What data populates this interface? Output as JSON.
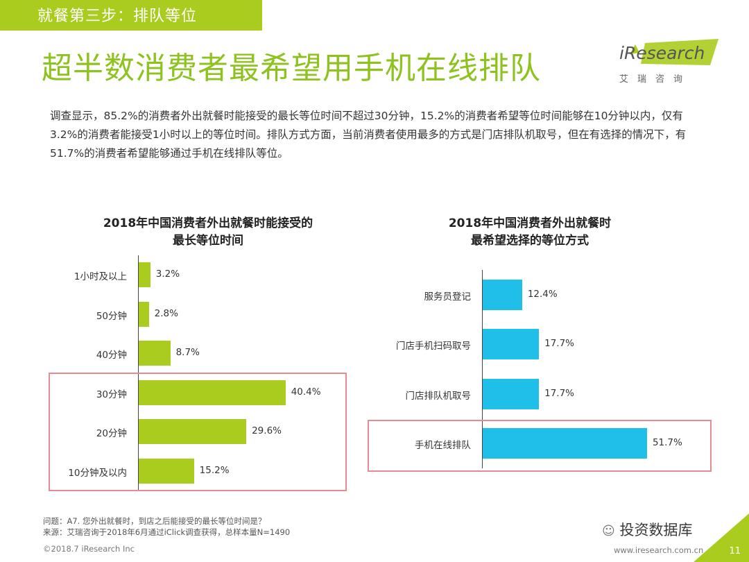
{
  "header": {
    "step_label": "就餐第三步：排队等位",
    "title": "超半数消费者最希望用手机在线排队",
    "logo_text": "iResearch",
    "logo_sub": "艾瑞咨询"
  },
  "intro": "调查显示，85.2%的消费者外出就餐时能接受的最长等位时间不超过30分钟，15.2%的消费者希望等位时间能够在10分钟以内，仅有3.2%的消费者能接受1小时以上的等位时间。排队方式方面，当前消费者使用最多的方式是门店排队机取号，但在有选择的情况下，有51.7%的消费者希望能够通过手机在线排队等位。",
  "chart_data": [
    {
      "type": "bar",
      "orientation": "horizontal",
      "title_line1": "2018年中国消费者外出就餐时能接受的",
      "title_line2": "最长等位时间",
      "categories": [
        "1小时及以上",
        "50分钟",
        "40分钟",
        "30分钟",
        "20分钟",
        "10分钟及以内"
      ],
      "values": [
        3.2,
        2.8,
        8.7,
        40.4,
        29.6,
        15.2
      ],
      "value_labels": [
        "3.2%",
        "2.8%",
        "8.7%",
        "40.4%",
        "29.6%",
        "15.2%"
      ],
      "highlighted": [
        "30分钟",
        "20分钟",
        "10分钟及以内"
      ],
      "color": "#a9cc1f",
      "xlim": [
        0,
        50
      ]
    },
    {
      "type": "bar",
      "orientation": "horizontal",
      "title_line1": "2018年中国消费者外出就餐时",
      "title_line2": "最希望选择的等位方式",
      "categories": [
        "服务员登记",
        "门店手机扫码取号",
        "门店排队机取号",
        "手机在线排队"
      ],
      "values": [
        12.4,
        17.7,
        17.7,
        51.7
      ],
      "value_labels": [
        "12.4%",
        "17.7%",
        "17.7%",
        "51.7%"
      ],
      "highlighted": [
        "手机在线排队"
      ],
      "color": "#1fbfea",
      "xlim": [
        0,
        60
      ]
    }
  ],
  "footer": {
    "question": "问题：A7. 您外出就餐时，到店之后能接受的最长等位时间是？",
    "source": "来源：艾瑞咨询于2018年6月通过iClick调查获得，总样本量N=1490",
    "copyright": "©2018.7 iResearch Inc",
    "website": "www.iresearch.com.cn",
    "watermark": "投资数据库",
    "page_number": "11"
  }
}
